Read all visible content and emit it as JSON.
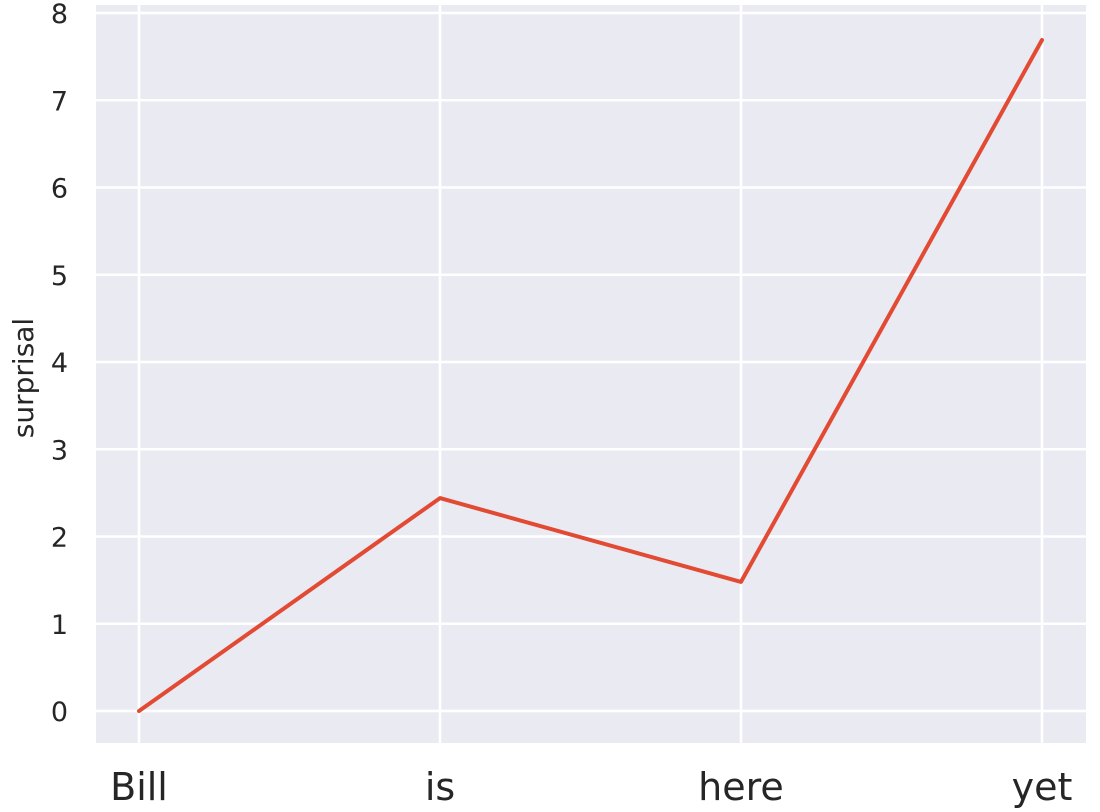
{
  "chart_data": {
    "type": "line",
    "categories": [
      "Bill",
      "is",
      "here",
      "yet"
    ],
    "series": [
      {
        "values": [
          0.0,
          2.44,
          1.48,
          7.69
        ],
        "color": "#e24a33"
      }
    ],
    "xlabel": "",
    "ylabel": "surprisal",
    "ylim": [
      -0.35,
      8.0
    ],
    "yticks": [
      0,
      1,
      2,
      3,
      4,
      5,
      6,
      7,
      8
    ],
    "grid": true,
    "background": "#eaeaf2"
  }
}
